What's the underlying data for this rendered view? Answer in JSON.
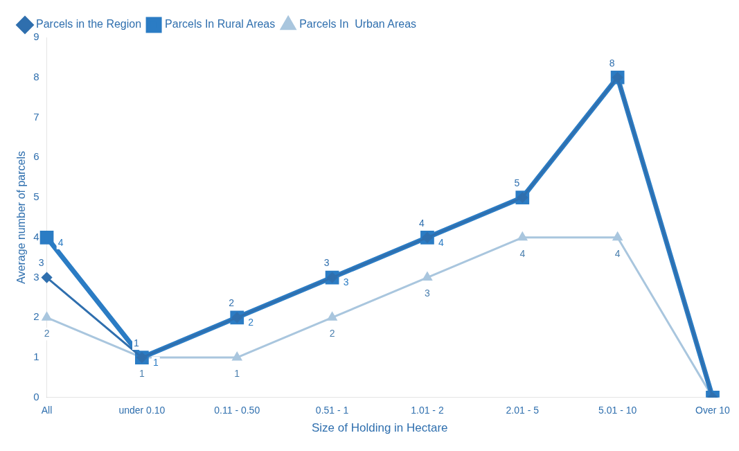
{
  "chart_data": {
    "type": "line",
    "xlabel": "Size of Holding in Hectare",
    "ylabel": "Average number of parcels",
    "categories": [
      "All",
      "under 0.10",
      "0.11 - 0.50",
      "0.51 - 1",
      "1.01 - 2",
      "2.01 - 5",
      "5.01 - 10",
      "Over 10"
    ],
    "series": [
      {
        "name": "Parcels in the Region",
        "color": "#2f6fae",
        "marker": "diamond",
        "values": [
          3,
          1,
          2,
          3,
          4,
          5,
          8,
          0
        ],
        "value_labels": [
          "3",
          "1",
          "2",
          "3",
          "4",
          "5",
          "8",
          null
        ]
      },
      {
        "name": "Parcels In Rural Areas",
        "color": "#2b7cc4",
        "marker": "square",
        "values": [
          4,
          1,
          2,
          3,
          4,
          5,
          8,
          0
        ],
        "value_labels": [
          "4",
          "1",
          "2",
          "3",
          "4",
          null,
          null,
          null
        ]
      },
      {
        "name": "Parcels In  Urban Areas",
        "color": "#a9c6de",
        "marker": "triangle",
        "values": [
          2,
          1,
          1,
          2,
          3,
          4,
          4,
          0
        ],
        "value_labels": [
          "2",
          "1",
          "1",
          "2",
          "3",
          "4",
          "4",
          null
        ]
      }
    ],
    "ylim": [
      0,
      9
    ],
    "yticks": [
      0,
      1,
      2,
      3,
      4,
      5,
      6,
      7,
      8,
      9
    ],
    "grid": false,
    "legend": "top left",
    "line_style": "solid"
  }
}
